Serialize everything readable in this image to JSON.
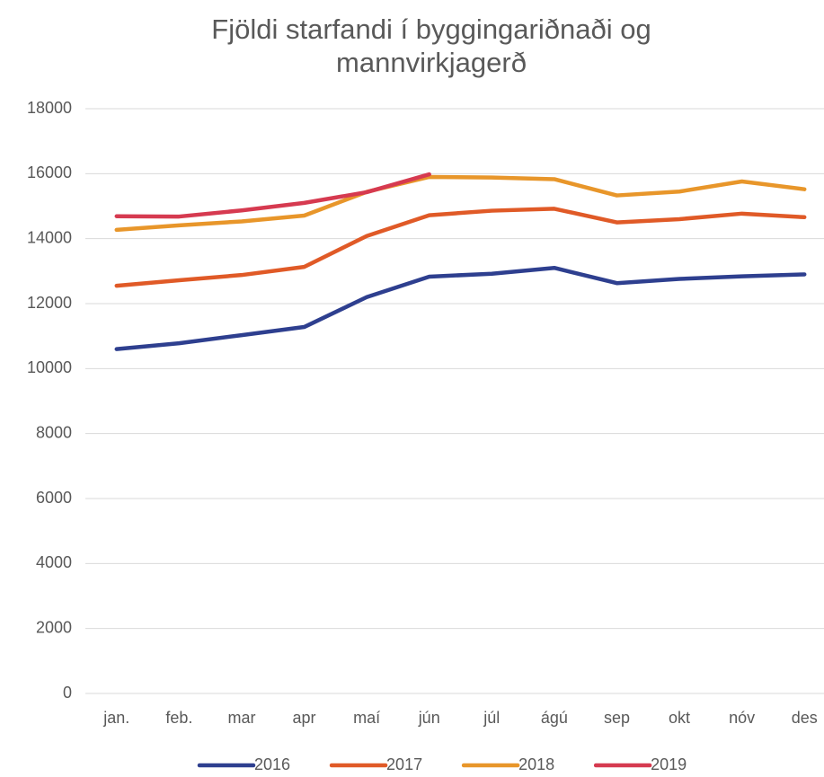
{
  "chart_data": {
    "type": "line",
    "title": "Fjöldi starfandi í byggingariðnaði og mannvirkjagerð",
    "categories": [
      "jan.",
      "feb.",
      "mar",
      "apr",
      "maí",
      "jún",
      "júl",
      "ágú",
      "sep",
      "okt",
      "nóv",
      "des"
    ],
    "series": [
      {
        "name": "2016",
        "color": "#2e3f8f",
        "values": [
          10600,
          10780,
          11030,
          11280,
          12200,
          12830,
          12920,
          13100,
          12630,
          12760,
          12840,
          12900
        ]
      },
      {
        "name": "2017",
        "color": "#e05a27",
        "values": [
          12550,
          12720,
          12880,
          13130,
          14080,
          14720,
          14860,
          14920,
          14500,
          14600,
          14770,
          14660
        ]
      },
      {
        "name": "2018",
        "color": "#e8962a",
        "values": [
          14270,
          14410,
          14530,
          14710,
          15440,
          15900,
          15880,
          15830,
          15330,
          15450,
          15760,
          15520
        ]
      },
      {
        "name": "2019",
        "color": "#d63a50",
        "values": [
          14690,
          14680,
          14870,
          15100,
          15430,
          15980,
          null,
          null,
          null,
          null,
          null,
          null
        ]
      }
    ],
    "ylim": [
      0,
      18000
    ],
    "yticks": [
      0,
      2000,
      4000,
      6000,
      8000,
      10000,
      12000,
      14000,
      16000,
      18000
    ],
    "grid": true,
    "legend": "bottom"
  }
}
